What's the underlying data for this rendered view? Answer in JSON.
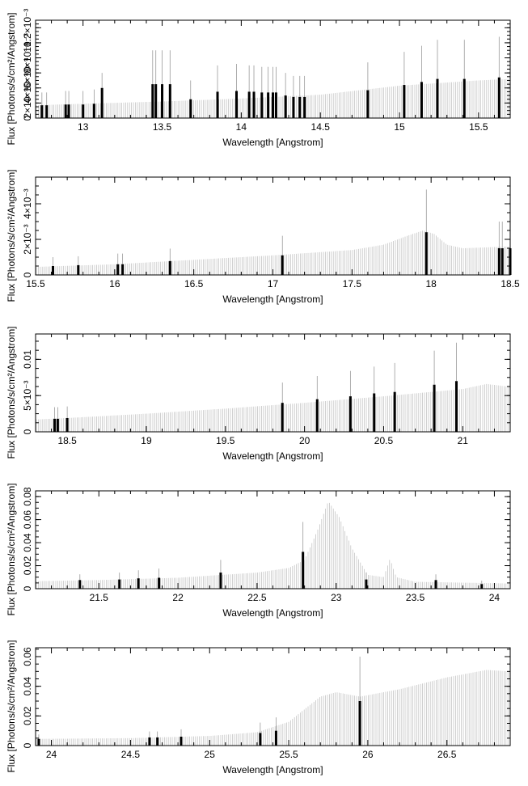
{
  "colors": {
    "model": "#bdbdbd",
    "data": "#000000",
    "errorbar": "#9a9a9a",
    "axis": "#000000"
  },
  "chart_data": [
    {
      "type": "bar",
      "title": "",
      "xlabel": "Wavelength [Angstrom]",
      "ylabel": "Flux [Photons/s/cm²/Angstrom]",
      "xlim": [
        12.7,
        15.7
      ],
      "ylim": [
        0,
        0.0013
      ],
      "xticks": [
        {
          "v": 13,
          "label": "13"
        },
        {
          "v": 13.5,
          "label": "13.5"
        },
        {
          "v": 14,
          "label": "14"
        },
        {
          "v": 14.5,
          "label": "14.5"
        },
        {
          "v": 15,
          "label": "15"
        },
        {
          "v": 15.5,
          "label": "15.5"
        }
      ],
      "yticks": [
        {
          "v": 0,
          "label": "0"
        },
        {
          "v": 0.0002,
          "label": "2×10⁻⁴"
        },
        {
          "v": 0.0004,
          "label": "4×10⁻⁴"
        },
        {
          "v": 0.0006,
          "label": "6×10⁻⁴"
        },
        {
          "v": 0.0008,
          "label": "8×10⁻⁴"
        },
        {
          "v": 0.001,
          "label": "10⁻³"
        },
        {
          "v": 0.0012,
          "label": "1.2×10⁻³"
        }
      ],
      "model": [
        {
          "x": 12.7,
          "y": 0.00017
        },
        {
          "x": 13.0,
          "y": 0.00019
        },
        {
          "x": 13.5,
          "y": 0.00022
        },
        {
          "x": 14.0,
          "y": 0.00026
        },
        {
          "x": 14.5,
          "y": 0.00031
        },
        {
          "x": 15.0,
          "y": 0.00043
        },
        {
          "x": 15.5,
          "y": 0.0005
        },
        {
          "x": 15.7,
          "y": 0.00052
        }
      ],
      "data": [
        {
          "x": 12.74,
          "y": 0.00017,
          "err": 0.00017
        },
        {
          "x": 12.77,
          "y": 0.00017,
          "err": 0.00017
        },
        {
          "x": 12.89,
          "y": 0.00018,
          "err": 0.00018
        },
        {
          "x": 12.91,
          "y": 0.00018,
          "err": 0.00018
        },
        {
          "x": 13.0,
          "y": 0.00018,
          "err": 0.00018
        },
        {
          "x": 13.07,
          "y": 0.00019,
          "err": 0.00019
        },
        {
          "x": 13.12,
          "y": 0.0004,
          "err": 0.0002
        },
        {
          "x": 13.44,
          "y": 0.00045,
          "err": 0.00045
        },
        {
          "x": 13.46,
          "y": 0.00045,
          "err": 0.00045
        },
        {
          "x": 13.5,
          "y": 0.00045,
          "err": 0.00045
        },
        {
          "x": 13.55,
          "y": 0.00045,
          "err": 0.00045
        },
        {
          "x": 13.68,
          "y": 0.00025,
          "err": 0.00025
        },
        {
          "x": 13.85,
          "y": 0.00035,
          "err": 0.00035
        },
        {
          "x": 13.97,
          "y": 0.00036,
          "err": 0.00036
        },
        {
          "x": 14.05,
          "y": 0.00035,
          "err": 0.00035
        },
        {
          "x": 14.08,
          "y": 0.00035,
          "err": 0.00035
        },
        {
          "x": 14.13,
          "y": 0.00034,
          "err": 0.00034
        },
        {
          "x": 14.17,
          "y": 0.00034,
          "err": 0.00034
        },
        {
          "x": 14.2,
          "y": 0.00034,
          "err": 0.00034
        },
        {
          "x": 14.22,
          "y": 0.00034,
          "err": 0.00034
        },
        {
          "x": 14.28,
          "y": 0.0003,
          "err": 0.0003
        },
        {
          "x": 14.33,
          "y": 0.00028,
          "err": 0.00028
        },
        {
          "x": 14.37,
          "y": 0.00028,
          "err": 0.00028
        },
        {
          "x": 14.4,
          "y": 0.00028,
          "err": 0.00028
        },
        {
          "x": 14.8,
          "y": 0.00037,
          "err": 0.00037
        },
        {
          "x": 15.03,
          "y": 0.00044,
          "err": 0.00044
        },
        {
          "x": 15.14,
          "y": 0.00048,
          "err": 0.00048
        },
        {
          "x": 15.24,
          "y": 0.00052,
          "err": 0.00052
        },
        {
          "x": 15.41,
          "y": 0.00052,
          "err": 0.00052
        },
        {
          "x": 15.63,
          "y": 0.00054,
          "err": 0.00054
        }
      ]
    },
    {
      "type": "bar",
      "title": "",
      "xlabel": "Wavelength [Angstrom]",
      "ylabel": "Flux [Photons/s/cm²/Angstrom]",
      "xlim": [
        15.5,
        18.5
      ],
      "ylim": [
        0,
        0.0055
      ],
      "xticks": [
        {
          "v": 15.5,
          "label": "15.5"
        },
        {
          "v": 16,
          "label": "16"
        },
        {
          "v": 16.5,
          "label": "16.5"
        },
        {
          "v": 17,
          "label": "17"
        },
        {
          "v": 17.5,
          "label": "17.5"
        },
        {
          "v": 18,
          "label": "18"
        },
        {
          "v": 18.5,
          "label": "18.5"
        }
      ],
      "yticks": [
        {
          "v": 0,
          "label": "0"
        },
        {
          "v": 0.002,
          "label": "2×10⁻³"
        },
        {
          "v": 0.004,
          "label": "4×10⁻³"
        }
      ],
      "model": [
        {
          "x": 15.5,
          "y": 0.00045
        },
        {
          "x": 16.0,
          "y": 0.0006
        },
        {
          "x": 16.5,
          "y": 0.00085
        },
        {
          "x": 17.0,
          "y": 0.0011
        },
        {
          "x": 17.5,
          "y": 0.0014
        },
        {
          "x": 17.7,
          "y": 0.0017
        },
        {
          "x": 17.85,
          "y": 0.0022
        },
        {
          "x": 17.95,
          "y": 0.0025
        },
        {
          "x": 18.02,
          "y": 0.0023
        },
        {
          "x": 18.1,
          "y": 0.0017
        },
        {
          "x": 18.2,
          "y": 0.0015
        },
        {
          "x": 18.5,
          "y": 0.0016
        }
      ],
      "data": [
        {
          "x": 15.61,
          "y": 0.0005,
          "err": 0.0005
        },
        {
          "x": 15.77,
          "y": 0.00055,
          "err": 0.0005
        },
        {
          "x": 16.02,
          "y": 0.0006,
          "err": 0.0006
        },
        {
          "x": 16.05,
          "y": 0.0006,
          "err": 0.0006
        },
        {
          "x": 16.35,
          "y": 0.00078,
          "err": 0.0007
        },
        {
          "x": 17.06,
          "y": 0.0011,
          "err": 0.0011
        },
        {
          "x": 17.97,
          "y": 0.0024,
          "err": 0.0024
        },
        {
          "x": 18.43,
          "y": 0.0015,
          "err": 0.0015
        },
        {
          "x": 18.45,
          "y": 0.0015,
          "err": 0.0015
        },
        {
          "x": 18.5,
          "y": 0.0015,
          "err": 0.0015
        }
      ]
    },
    {
      "type": "bar",
      "title": "",
      "xlabel": "Wavelength [Angstrom]",
      "ylabel": "Flux [Photons/s/cm²/Angstrom]",
      "xlim": [
        18.3,
        21.3
      ],
      "ylim": [
        0,
        0.0135
      ],
      "xticks": [
        {
          "v": 18.5,
          "label": "18.5"
        },
        {
          "v": 19,
          "label": "19"
        },
        {
          "v": 19.5,
          "label": "19.5"
        },
        {
          "v": 20,
          "label": "20"
        },
        {
          "v": 20.5,
          "label": "20.5"
        },
        {
          "v": 21,
          "label": "21"
        }
      ],
      "yticks": [
        {
          "v": 0,
          "label": "0"
        },
        {
          "v": 0.005,
          "label": "5×10⁻³"
        },
        {
          "v": 0.01,
          "label": "0.01"
        }
      ],
      "model": [
        {
          "x": 18.3,
          "y": 0.0017
        },
        {
          "x": 18.5,
          "y": 0.0019
        },
        {
          "x": 19.0,
          "y": 0.0025
        },
        {
          "x": 19.5,
          "y": 0.0032
        },
        {
          "x": 20.0,
          "y": 0.004
        },
        {
          "x": 20.5,
          "y": 0.0049
        },
        {
          "x": 21.0,
          "y": 0.0059
        },
        {
          "x": 21.15,
          "y": 0.0066
        },
        {
          "x": 21.3,
          "y": 0.0062
        }
      ],
      "data": [
        {
          "x": 18.42,
          "y": 0.0018,
          "err": 0.0016
        },
        {
          "x": 18.44,
          "y": 0.0018,
          "err": 0.0016
        },
        {
          "x": 18.5,
          "y": 0.0019,
          "err": 0.0016
        },
        {
          "x": 19.86,
          "y": 0.004,
          "err": 0.0028
        },
        {
          "x": 20.08,
          "y": 0.0045,
          "err": 0.0032
        },
        {
          "x": 20.29,
          "y": 0.0049,
          "err": 0.0035
        },
        {
          "x": 20.44,
          "y": 0.0053,
          "err": 0.0037
        },
        {
          "x": 20.57,
          "y": 0.0055,
          "err": 0.004
        },
        {
          "x": 20.82,
          "y": 0.0065,
          "err": 0.0047
        },
        {
          "x": 20.96,
          "y": 0.007,
          "err": 0.0053
        }
      ]
    },
    {
      "type": "bar",
      "title": "",
      "xlabel": "Wavelength [Angstrom]",
      "ylabel": "Flux [Photons/s/cm²/Angstrom]",
      "xlim": [
        21.1,
        24.1
      ],
      "ylim": [
        0,
        0.085
      ],
      "xticks": [
        {
          "v": 21.5,
          "label": "21.5"
        },
        {
          "v": 22,
          "label": "22"
        },
        {
          "v": 22.5,
          "label": "22.5"
        },
        {
          "v": 23,
          "label": "23"
        },
        {
          "v": 23.5,
          "label": "23.5"
        },
        {
          "v": 24,
          "label": "24"
        }
      ],
      "yticks": [
        {
          "v": 0,
          "label": "0"
        },
        {
          "v": 0.02,
          "label": "0.02"
        },
        {
          "v": 0.04,
          "label": "0.04"
        },
        {
          "v": 0.06,
          "label": "0.06"
        },
        {
          "v": 0.08,
          "label": "0.08"
        }
      ],
      "model": [
        {
          "x": 21.1,
          "y": 0.0065
        },
        {
          "x": 21.5,
          "y": 0.0075
        },
        {
          "x": 22.0,
          "y": 0.0095
        },
        {
          "x": 22.5,
          "y": 0.014
        },
        {
          "x": 22.7,
          "y": 0.018
        },
        {
          "x": 22.8,
          "y": 0.025
        },
        {
          "x": 22.88,
          "y": 0.05
        },
        {
          "x": 22.95,
          "y": 0.076
        },
        {
          "x": 23.02,
          "y": 0.062
        },
        {
          "x": 23.1,
          "y": 0.035
        },
        {
          "x": 23.2,
          "y": 0.012
        },
        {
          "x": 23.3,
          "y": 0.01
        },
        {
          "x": 23.34,
          "y": 0.026
        },
        {
          "x": 23.38,
          "y": 0.01
        },
        {
          "x": 23.5,
          "y": 0.006
        },
        {
          "x": 24.1,
          "y": 0.0045
        }
      ],
      "data": [
        {
          "x": 21.38,
          "y": 0.0075,
          "err": 0.005
        },
        {
          "x": 21.63,
          "y": 0.008,
          "err": 0.006
        },
        {
          "x": 21.75,
          "y": 0.009,
          "err": 0.007
        },
        {
          "x": 21.88,
          "y": 0.0095,
          "err": 0.008
        },
        {
          "x": 22.27,
          "y": 0.014,
          "err": 0.011
        },
        {
          "x": 22.79,
          "y": 0.032,
          "err": 0.026
        },
        {
          "x": 23.19,
          "y": 0.008,
          "err": 0.006
        },
        {
          "x": 23.63,
          "y": 0.0075,
          "err": 0.005
        },
        {
          "x": 23.92,
          "y": 0.004,
          "err": 0.003
        }
      ]
    },
    {
      "type": "bar",
      "title": "",
      "xlabel": "Wavelength [Angstrom]",
      "ylabel": "Flux [Photons/s/cm²/Angstrom]",
      "xlim": [
        23.9,
        26.9
      ],
      "ylim": [
        0,
        0.066
      ],
      "xticks": [
        {
          "v": 24,
          "label": "24"
        },
        {
          "v": 24.5,
          "label": "24.5"
        },
        {
          "v": 25,
          "label": "25"
        },
        {
          "v": 25.5,
          "label": "25.5"
        },
        {
          "v": 26,
          "label": "26"
        },
        {
          "v": 26.5,
          "label": "26.5"
        }
      ],
      "yticks": [
        {
          "v": 0,
          "label": "0"
        },
        {
          "v": 0.02,
          "label": "0.02"
        },
        {
          "v": 0.04,
          "label": "0.04"
        },
        {
          "v": 0.06,
          "label": "0.06"
        }
      ],
      "model": [
        {
          "x": 23.9,
          "y": 0.0045
        },
        {
          "x": 24.5,
          "y": 0.005
        },
        {
          "x": 25.0,
          "y": 0.0065
        },
        {
          "x": 25.3,
          "y": 0.009
        },
        {
          "x": 25.5,
          "y": 0.016
        },
        {
          "x": 25.7,
          "y": 0.033
        },
        {
          "x": 25.8,
          "y": 0.036
        },
        {
          "x": 25.95,
          "y": 0.033
        },
        {
          "x": 26.2,
          "y": 0.038
        },
        {
          "x": 26.5,
          "y": 0.046
        },
        {
          "x": 26.75,
          "y": 0.051
        },
        {
          "x": 26.9,
          "y": 0.05
        }
      ],
      "data": [
        {
          "x": 23.92,
          "y": 0.0045,
          "err": 0.003
        },
        {
          "x": 24.62,
          "y": 0.0055,
          "err": 0.004
        },
        {
          "x": 24.67,
          "y": 0.0055,
          "err": 0.004
        },
        {
          "x": 24.82,
          "y": 0.006,
          "err": 0.005
        },
        {
          "x": 25.32,
          "y": 0.0085,
          "err": 0.007
        },
        {
          "x": 25.42,
          "y": 0.01,
          "err": 0.009
        },
        {
          "x": 25.95,
          "y": 0.03,
          "err": 0.03
        }
      ]
    }
  ]
}
